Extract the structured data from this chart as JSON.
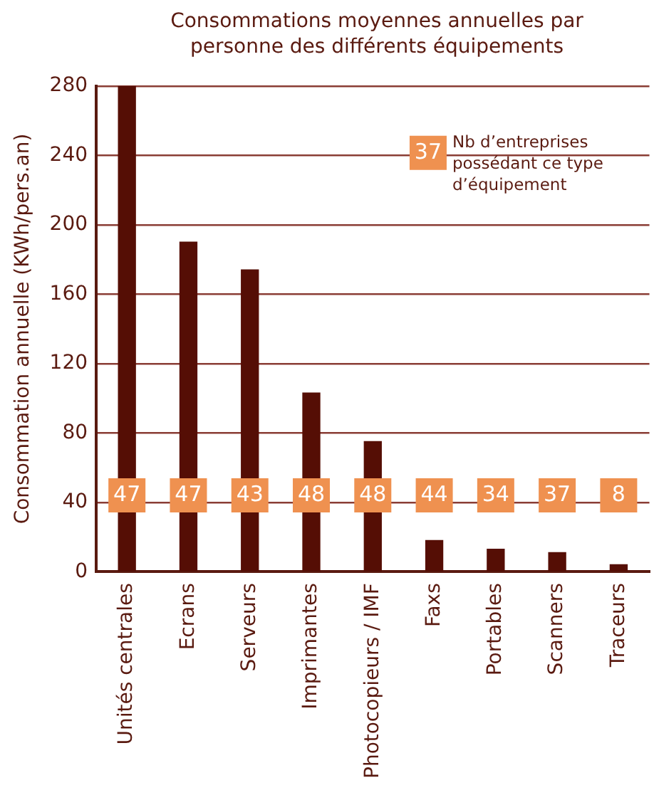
{
  "chart_data": {
    "type": "bar",
    "title": "Consommations moyennes annuelles par personne des différents équipements",
    "ylabel": "Consommation annuelle (KWh/pers.an)",
    "categories": [
      "Unités centrales",
      "Ecrans",
      "Serveurs",
      "Imprimantes",
      "Photocopieurs / IMF",
      "Faxs",
      "Portables",
      "Scanners",
      "Traceurs"
    ],
    "values": [
      280,
      190,
      174,
      103,
      75,
      18,
      13,
      11,
      4
    ],
    "color": "#550e05",
    "ylim": [
      0,
      280
    ],
    "yticks": [
      0,
      40,
      80,
      120,
      160,
      200,
      240,
      280
    ],
    "grid": "y",
    "annotations": [
      "37",
      "Nb d’entreprises possédant ce type d’équipement",
      {
        "text": "47",
        "x": "Unités centrales",
        "y": 44
      },
      {
        "text": "47",
        "x": "Ecrans",
        "y": 44
      },
      {
        "text": "43",
        "x": "Serveurs",
        "y": 44
      },
      {
        "text": "48",
        "x": "Imprimantes",
        "y": 44
      },
      {
        "text": "48",
        "x": "Photocopieurs / IMF",
        "y": 44
      },
      {
        "text": "44",
        "x": "Faxs",
        "y": 44
      },
      {
        "text": "34",
        "x": "Portables",
        "y": 44
      },
      {
        "text": "37",
        "x": "Scanners",
        "y": 44
      },
      {
        "text": "8",
        "x": "Traceurs",
        "y": 44
      }
    ]
  }
}
